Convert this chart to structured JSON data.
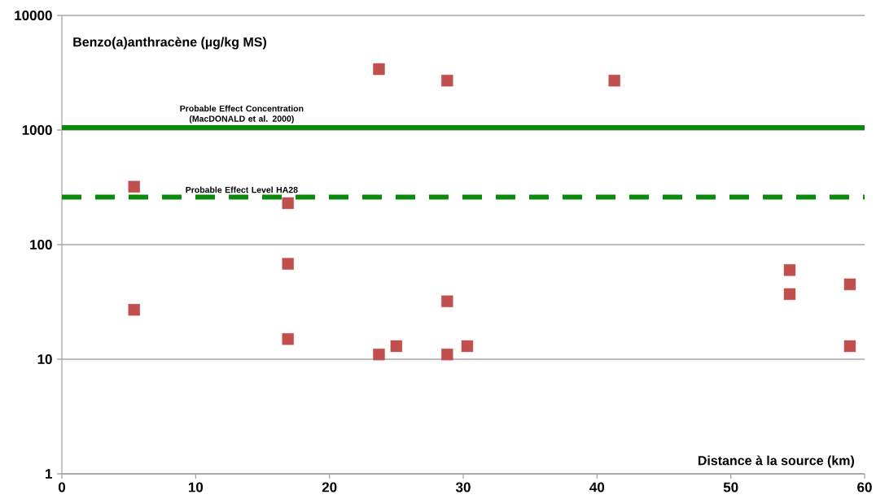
{
  "chart_data": {
    "type": "scatter",
    "xlabel": "Distance à la source (km)",
    "ylabel": "Benzo(a)anthracène (µg/kg MS)",
    "x": [
      5.4,
      5.4,
      16.9,
      16.9,
      16.9,
      23.7,
      23.7,
      25.0,
      28.8,
      28.8,
      28.8,
      30.3,
      41.3,
      54.4,
      54.4,
      58.9,
      58.9
    ],
    "values": [
      320,
      27,
      230,
      68,
      15,
      3400,
      11,
      13,
      2700,
      32,
      11,
      13,
      2700,
      60,
      37,
      45,
      13
    ],
    "color": "#c0504d",
    "marker": "square",
    "log": "y",
    "grid": "y",
    "xlim": [
      0,
      60
    ],
    "xticks": [
      0,
      10,
      20,
      30,
      40,
      50,
      60
    ],
    "ylim": [
      1,
      10000
    ],
    "yticks": [
      1,
      10,
      100,
      1000,
      10000
    ],
    "ref_lines": [
      {
        "axis": "y",
        "value": 1050,
        "label": "Probable Effect Concentration (MacDONALD et al. 2000)",
        "color": "#0a8a0a",
        "line_style": "solid"
      },
      {
        "axis": "y",
        "value": 260,
        "label": "Probable Effect Level HA28",
        "color": "#0a8a0a",
        "line_style": "dashed"
      }
    ]
  }
}
